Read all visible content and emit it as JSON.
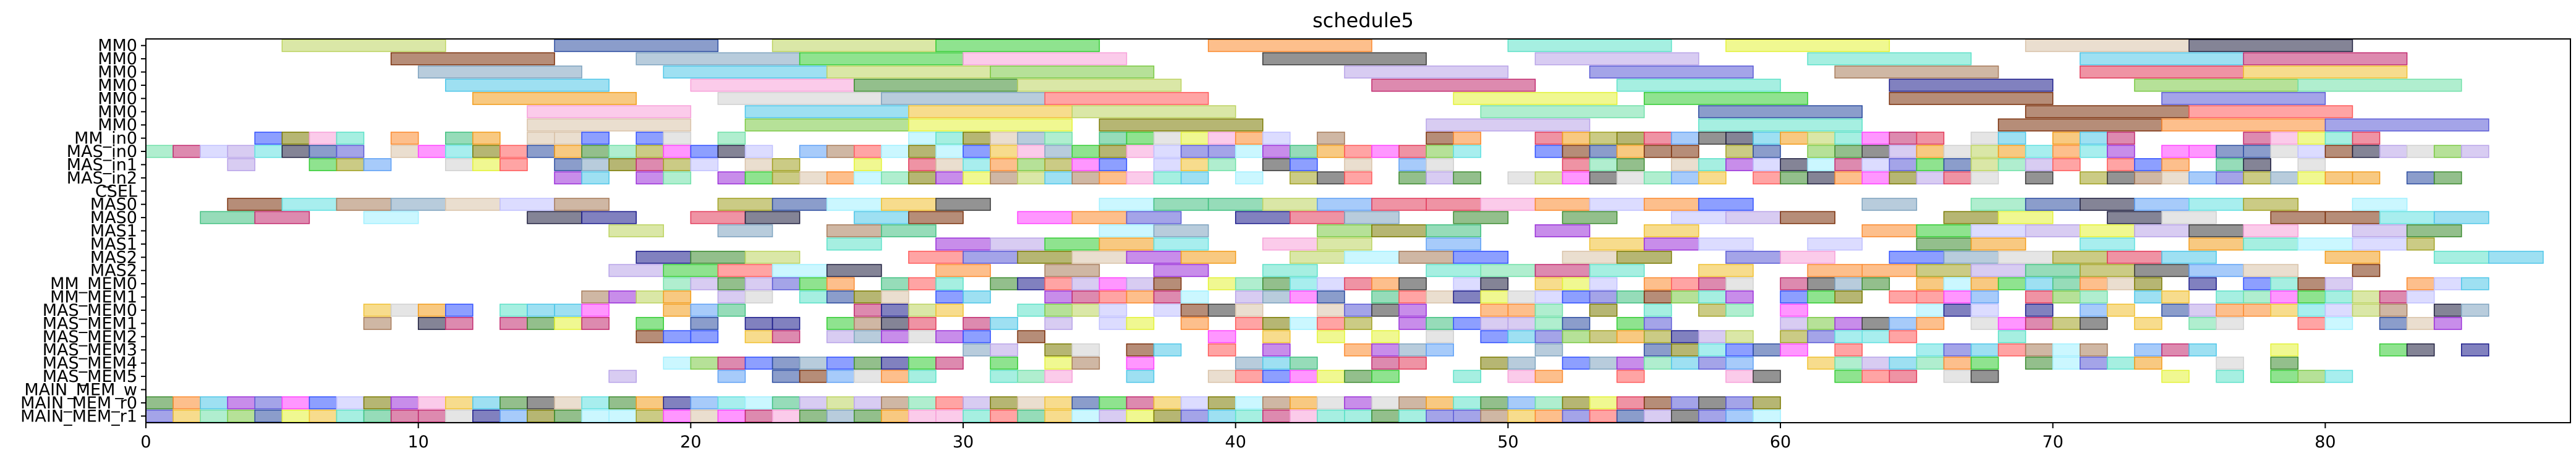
{
  "chart_data": {
    "type": "gantt",
    "title": "schedule5",
    "xlim": [
      0,
      89
    ],
    "x_ticks": [
      0,
      10,
      20,
      30,
      40,
      50,
      60,
      70,
      80
    ],
    "rows": [
      "MM0",
      "MM0",
      "MM0",
      "MM0",
      "MM0",
      "MM0",
      "MM0",
      "MM_in0",
      "MAS_in0",
      "MAS_in1",
      "MAS_in2",
      "CSEL",
      "MAS0",
      "MAS0",
      "MAS1",
      "MAS1",
      "MAS2",
      "MAS2",
      "MM_MEM0",
      "MM_MEM1",
      "MAS_MEM0",
      "MAS_MEM1",
      "MAS_MEM2",
      "MAS_MEM3",
      "MAS_MEM4",
      "MAS_MEM5",
      "MAIN_MEM_w",
      "MAIN_MEM_r0",
      "MAIN_MEM_r1"
    ],
    "palette": [
      "#bcd35f",
      "#2b4ca0",
      "#7ac943",
      "#33cc33",
      "#fb8a2e",
      "#5ce1c8",
      "#e3f236",
      "#d9c2a8",
      "#1f1f3f",
      "#c1296e",
      "#7a2f0a",
      "#7ea3bf",
      "#4ec6e8",
      "#f7a0d9",
      "#3a3a3a",
      "#b8a3e8",
      "#5a5ad6",
      "#a77b5a",
      "#1a1a8a",
      "#e23a5a",
      "#f0c030",
      "#6fe0a8",
      "#f29c1a",
      "#3b8a2e",
      "#9a2fd9",
      "#5ea0f5",
      "#c0c0ff",
      "#ff5a5a",
      "#a0f0ff",
      "#7a7a00",
      "#40c080",
      "#ff40ff",
      "#3050ff",
      "#60e0e0",
      "#d0d0d0",
      "#a0a020"
    ],
    "tasks": [
      {
        "row": 0,
        "start": 5,
        "end": 11,
        "c": 0
      },
      {
        "row": 0,
        "start": 15,
        "end": 21,
        "c": 1
      },
      {
        "row": 0,
        "start": 23,
        "end": 29,
        "c": 0
      },
      {
        "row": 0,
        "start": 29,
        "end": 35,
        "c": 3
      },
      {
        "row": 0,
        "start": 39,
        "end": 45,
        "c": 4
      },
      {
        "row": 0,
        "start": 50,
        "end": 56,
        "c": 5
      },
      {
        "row": 0,
        "start": 58,
        "end": 64,
        "c": 6
      },
      {
        "row": 0,
        "start": 69,
        "end": 75,
        "c": 7
      },
      {
        "row": 0,
        "start": 75,
        "end": 81,
        "c": 8
      },
      {
        "row": 1,
        "start": 9,
        "end": 15,
        "c": 10
      },
      {
        "row": 1,
        "start": 18,
        "end": 24,
        "c": 11
      },
      {
        "row": 1,
        "start": 24,
        "end": 30,
        "c": 3
      },
      {
        "row": 1,
        "start": 30,
        "end": 36,
        "c": 13
      },
      {
        "row": 1,
        "start": 41,
        "end": 47,
        "c": 14
      },
      {
        "row": 1,
        "start": 51,
        "end": 57,
        "c": 15
      },
      {
        "row": 1,
        "start": 61,
        "end": 67,
        "c": 5
      },
      {
        "row": 1,
        "start": 71,
        "end": 77,
        "c": 12
      },
      {
        "row": 1,
        "start": 77,
        "end": 83,
        "c": 9
      },
      {
        "row": 2,
        "start": 10,
        "end": 16,
        "c": 11
      },
      {
        "row": 2,
        "start": 19,
        "end": 25,
        "c": 12
      },
      {
        "row": 2,
        "start": 25,
        "end": 31,
        "c": 0
      },
      {
        "row": 2,
        "start": 31,
        "end": 37,
        "c": 2
      },
      {
        "row": 2,
        "start": 44,
        "end": 50,
        "c": 15
      },
      {
        "row": 2,
        "start": 53,
        "end": 59,
        "c": 16
      },
      {
        "row": 2,
        "start": 62,
        "end": 68,
        "c": 17
      },
      {
        "row": 2,
        "start": 71,
        "end": 77,
        "c": 19
      },
      {
        "row": 2,
        "start": 77,
        "end": 83,
        "c": 20
      },
      {
        "row": 3,
        "start": 11,
        "end": 17,
        "c": 12
      },
      {
        "row": 3,
        "start": 20,
        "end": 26,
        "c": 13
      },
      {
        "row": 3,
        "start": 26,
        "end": 32,
        "c": 23
      },
      {
        "row": 3,
        "start": 32,
        "end": 38,
        "c": 0
      },
      {
        "row": 3,
        "start": 45,
        "end": 51,
        "c": 9
      },
      {
        "row": 3,
        "start": 54,
        "end": 60,
        "c": 5
      },
      {
        "row": 3,
        "start": 64,
        "end": 70,
        "c": 18
      },
      {
        "row": 3,
        "start": 73,
        "end": 79,
        "c": 2
      },
      {
        "row": 3,
        "start": 79,
        "end": 85,
        "c": 21
      },
      {
        "row": 4,
        "start": 12,
        "end": 18,
        "c": 22
      },
      {
        "row": 4,
        "start": 21,
        "end": 27,
        "c": 34
      },
      {
        "row": 4,
        "start": 27,
        "end": 33,
        "c": 11
      },
      {
        "row": 4,
        "start": 33,
        "end": 39,
        "c": 27
      },
      {
        "row": 4,
        "start": 48,
        "end": 54,
        "c": 6
      },
      {
        "row": 4,
        "start": 55,
        "end": 61,
        "c": 3
      },
      {
        "row": 4,
        "start": 64,
        "end": 70,
        "c": 10
      },
      {
        "row": 4,
        "start": 74,
        "end": 80,
        "c": 16
      },
      {
        "row": 5,
        "start": 14,
        "end": 20,
        "c": 13
      },
      {
        "row": 5,
        "start": 22,
        "end": 28,
        "c": 12
      },
      {
        "row": 5,
        "start": 28,
        "end": 34,
        "c": 20
      },
      {
        "row": 5,
        "start": 34,
        "end": 40,
        "c": 0
      },
      {
        "row": 5,
        "start": 49,
        "end": 55,
        "c": 21
      },
      {
        "row": 5,
        "start": 57,
        "end": 63,
        "c": 1
      },
      {
        "row": 5,
        "start": 69,
        "end": 75,
        "c": 10
      },
      {
        "row": 5,
        "start": 75,
        "end": 81,
        "c": 27
      },
      {
        "row": 6,
        "start": 14,
        "end": 20,
        "c": 7
      },
      {
        "row": 6,
        "start": 22,
        "end": 28,
        "c": 2
      },
      {
        "row": 6,
        "start": 28,
        "end": 34,
        "c": 6
      },
      {
        "row": 6,
        "start": 35,
        "end": 41,
        "c": 29
      },
      {
        "row": 6,
        "start": 47,
        "end": 53,
        "c": 15
      },
      {
        "row": 6,
        "start": 57,
        "end": 63,
        "c": 5
      },
      {
        "row": 6,
        "start": 68,
        "end": 74,
        "c": 10
      },
      {
        "row": 6,
        "start": 74,
        "end": 80,
        "c": 4
      },
      {
        "row": 6,
        "start": 80,
        "end": 86,
        "c": 16
      }
    ],
    "dense_rows_seed": 5
  }
}
